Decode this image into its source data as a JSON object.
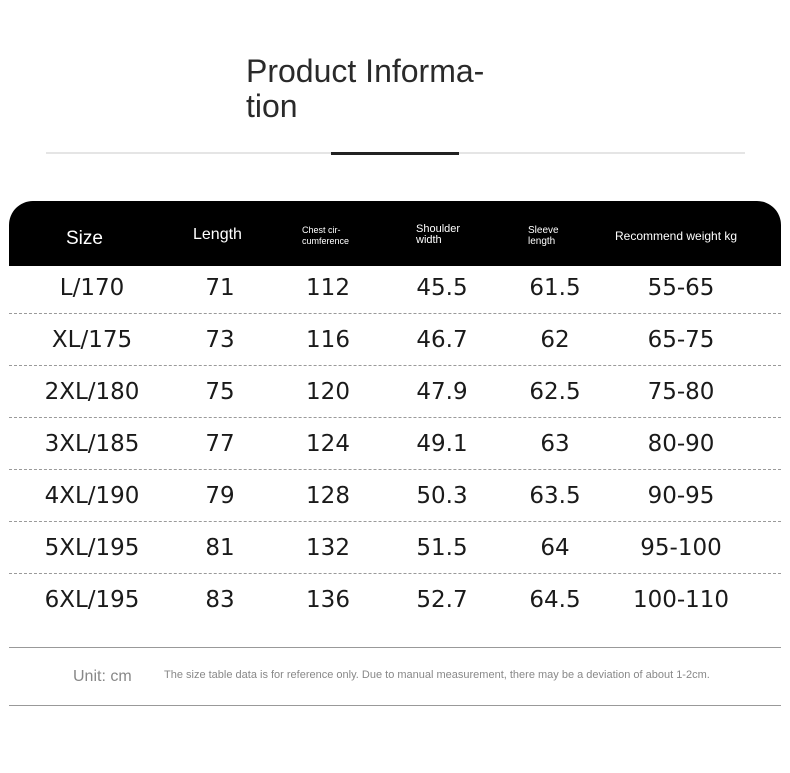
{
  "title": {
    "line1": "Product Informa-",
    "line2": "tion"
  },
  "table": {
    "headers": {
      "size": "Size",
      "length": "Length",
      "chest": "Chest cir-\ncumference",
      "shoulder": "Shoulder\nwidth",
      "sleeve": "Sleeve\nlength",
      "weight": "Recommend weight kg"
    },
    "rows": [
      [
        "L/170",
        "71",
        "112",
        "45.5",
        "61.5",
        "55-65"
      ],
      [
        "XL/175",
        "73",
        "116",
        "46.7",
        "62",
        "65-75"
      ],
      [
        "2XL/180",
        "75",
        "120",
        "47.9",
        "62.5",
        "75-80"
      ],
      [
        "3XL/185",
        "77",
        "124",
        "49.1",
        "63",
        "80-90"
      ],
      [
        "4XL/190",
        "79",
        "128",
        "50.3",
        "63.5",
        "90-95"
      ],
      [
        "5XL/195",
        "81",
        "132",
        "51.5",
        "64",
        "95-100"
      ],
      [
        "6XL/195",
        "83",
        "136",
        "52.7",
        "64.5",
        "100-110"
      ]
    ]
  },
  "footer": {
    "unit": "Unit: cm",
    "note": "The size table data is for reference only. Due to manual measurement, there may be a deviation of about 1-2cm."
  }
}
